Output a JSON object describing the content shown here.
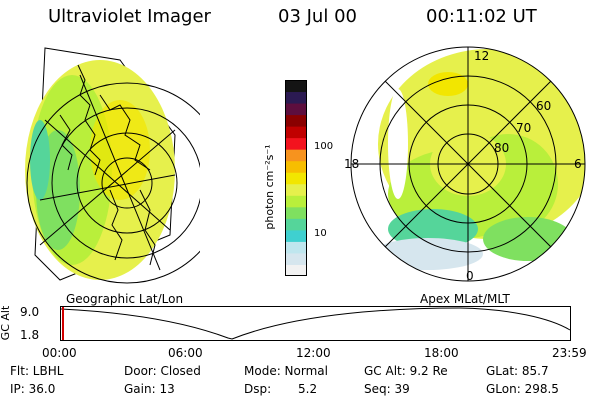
{
  "header": {
    "instrument": "Ultraviolet Imager",
    "date": "03 Jul 00",
    "time": "00:11:02 UT"
  },
  "colorbar": {
    "unit_label": "photon cm⁻²s⁻¹",
    "ticks": [
      "100",
      "10"
    ],
    "colors": [
      "#f2f2f2",
      "#d6e6ee",
      "#bfe6ee",
      "#3fd0d0",
      "#55d59a",
      "#7fe060",
      "#b9ef3b",
      "#e6f04c",
      "#f2e600",
      "#f7be00",
      "#f7931e",
      "#f3131e",
      "#c00000",
      "#8a0000",
      "#5d0e3e",
      "#2b1a52",
      "#141414"
    ]
  },
  "maps": {
    "left_label": "Geographic Lat/Lon",
    "right_label": "Apex MLat/MLT",
    "right_lat_labels": [
      "60",
      "70",
      "80"
    ],
    "right_mlt_labels": {
      "top": "12",
      "left": "18",
      "right": "6",
      "bottom": "0"
    }
  },
  "strip": {
    "ylabel": "GC Alt",
    "y_max": "9.0",
    "y_min": "1.8",
    "x_ticks": [
      "00:00",
      "06:00",
      "12:00",
      "18:00",
      "23:59"
    ]
  },
  "footer": {
    "flt": "Flt: LBHL",
    "ip": "IP: 36.0",
    "door": "Door: Closed",
    "gain": "Gain: 13",
    "mode": "Mode: Normal",
    "dsp_label": "Dsp:",
    "dsp_value": "5.2",
    "gc_alt": "GC Alt: 9.2 Re",
    "seq": "Seq: 39",
    "glat": "GLat: 85.7",
    "glon": "GLon: 298.5"
  }
}
